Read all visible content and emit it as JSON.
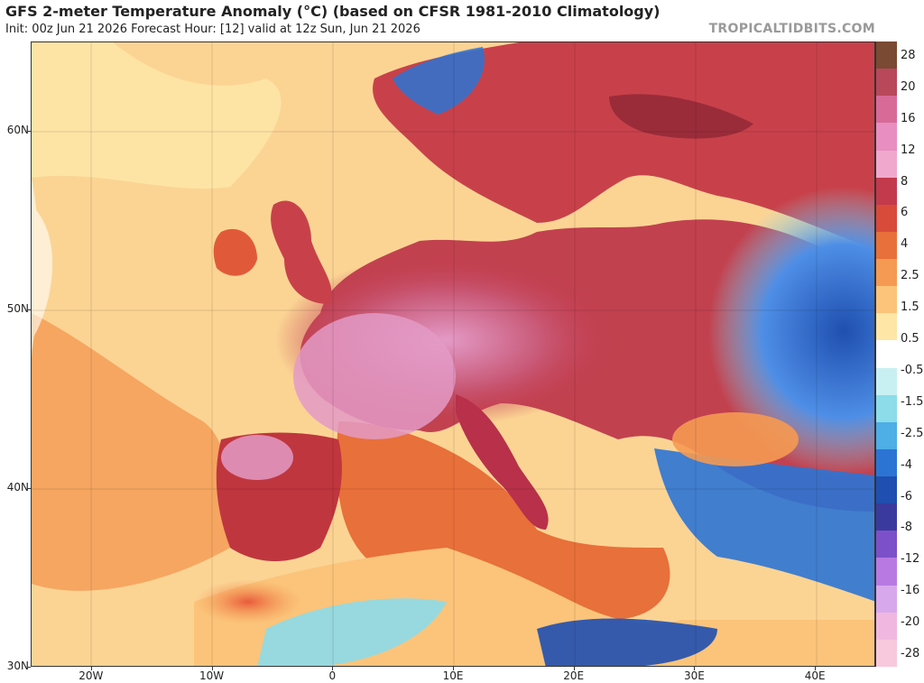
{
  "header": {
    "title": "GFS 2-meter Temperature Anomaly (°C) (based on CFSR 1981-2010 Climatology)",
    "subtitle": "Init: 00z Jun 21 2026   Forecast Hour: [12]   valid at 12z Sun, Jun 21 2026",
    "brand": "TROPICALTIDBITS.COM"
  },
  "map": {
    "lat_range": [
      30,
      65
    ],
    "lon_range": [
      -25,
      45
    ],
    "lat_ticks": [
      {
        "value": 60,
        "label": "60N"
      },
      {
        "value": 50,
        "label": "50N"
      },
      {
        "value": 40,
        "label": "40N"
      },
      {
        "value": 30,
        "label": "30N"
      }
    ],
    "lon_ticks": [
      {
        "value": -20,
        "label": "20W"
      },
      {
        "value": -10,
        "label": "10W"
      },
      {
        "value": 0,
        "label": "0"
      },
      {
        "value": 10,
        "label": "10E"
      },
      {
        "value": 20,
        "label": "20E"
      },
      {
        "value": 30,
        "label": "30E"
      },
      {
        "value": 40,
        "label": "40E"
      }
    ]
  },
  "colorbar": {
    "labels": [
      "28",
      "20",
      "16",
      "12",
      "8",
      "6",
      "4",
      "2.5",
      "1.5",
      "0.5",
      "-0.5",
      "-1.5",
      "-2.5",
      "-4",
      "-6",
      "-8",
      "-12",
      "-16",
      "-20",
      "-28"
    ],
    "colors": [
      "#7a4a32",
      "#b8485a",
      "#d86a98",
      "#e88ec0",
      "#f0a8cc",
      "#c23a4c",
      "#d84a3a",
      "#e8703a",
      "#f59a52",
      "#fbc47a",
      "#fde6a6",
      "#ffffff",
      "#c8f0f2",
      "#8cdcea",
      "#4eaee6",
      "#2c74d4",
      "#1f4fb0",
      "#3a3a9e",
      "#7c50c8",
      "#b87ae2",
      "#d8a8ec",
      "#f0b8e0",
      "#f8c8dc"
    ]
  }
}
